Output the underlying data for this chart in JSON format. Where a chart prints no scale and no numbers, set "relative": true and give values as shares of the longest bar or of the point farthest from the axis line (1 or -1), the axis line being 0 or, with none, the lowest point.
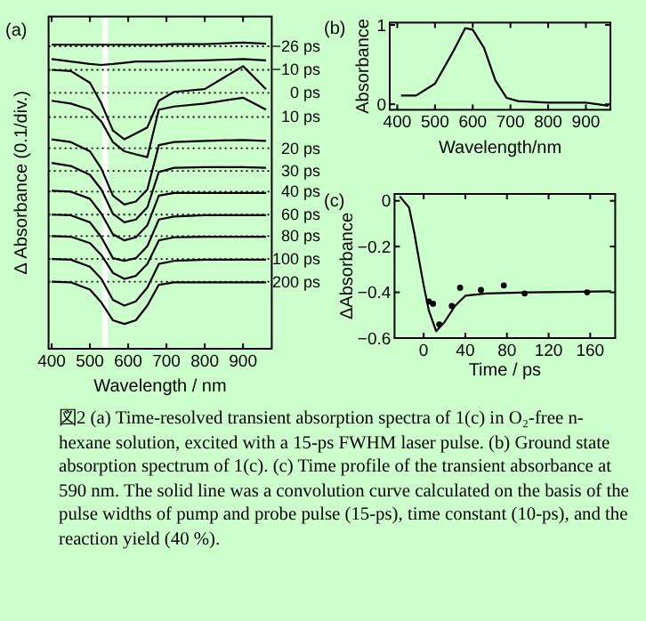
{
  "chart_data": [
    {
      "type": "line",
      "title": "(a)",
      "xlabel": "Wavelength / nm",
      "ylabel": "Δ Absorbance (0.1/div.)",
      "relative": true,
      "xlim": [
        392,
        975
      ],
      "xticks": [
        400,
        500,
        600,
        700,
        800,
        900
      ],
      "x": [
        400,
        450,
        500,
        530,
        560,
        590,
        620,
        650,
        680,
        720,
        800,
        900,
        960
      ],
      "series": [
        {
          "color": "#000000",
          "values": [
            0.993,
            0.993,
            0.993,
            0.993,
            0.993,
            0.993,
            0.993,
            0.993,
            0.993,
            0.995,
            0.995,
            1.0,
            0.996
          ]
        },
        {
          "color": "#000000",
          "values": [
            0.946,
            0.938,
            0.93,
            0.927,
            0.93,
            0.934,
            0.938,
            0.938,
            0.938,
            0.94,
            0.942,
            0.946,
            0.942
          ]
        },
        {
          "color": "#000000",
          "values": [
            0.911,
            0.907,
            0.869,
            0.801,
            0.713,
            0.684,
            0.703,
            0.723,
            0.81,
            0.839,
            0.848,
            0.923,
            0.848
          ]
        },
        {
          "color": "#000000",
          "values": [
            0.81,
            0.801,
            0.781,
            0.742,
            0.675,
            0.645,
            0.635,
            0.626,
            0.781,
            0.791,
            0.801,
            0.82,
            0.781
          ]
        },
        {
          "color": "#000000",
          "values": [
            0.684,
            0.675,
            0.645,
            0.588,
            0.5,
            0.471,
            0.481,
            0.52,
            0.665,
            0.675,
            0.679,
            0.682,
            0.679
          ]
        },
        {
          "color": "#000000",
          "values": [
            0.607,
            0.597,
            0.568,
            0.52,
            0.441,
            0.413,
            0.422,
            0.462,
            0.577,
            0.591,
            0.593,
            0.593,
            0.591
          ]
        },
        {
          "color": "#000000",
          "values": [
            0.516,
            0.513,
            0.49,
            0.441,
            0.374,
            0.354,
            0.364,
            0.403,
            0.5,
            0.509,
            0.509,
            0.509,
            0.509
          ]
        },
        {
          "color": "#000000",
          "values": [
            0.438,
            0.436,
            0.413,
            0.364,
            0.296,
            0.287,
            0.296,
            0.335,
            0.422,
            0.432,
            0.436,
            0.436,
            0.436
          ]
        },
        {
          "color": "#000000",
          "values": [
            0.368,
            0.366,
            0.345,
            0.306,
            0.248,
            0.228,
            0.238,
            0.277,
            0.354,
            0.364,
            0.366,
            0.366,
            0.366
          ]
        },
        {
          "color": "#000000",
          "values": [
            0.293,
            0.291,
            0.268,
            0.228,
            0.16,
            0.141,
            0.155,
            0.2,
            0.277,
            0.287,
            0.291,
            0.291,
            0.291
          ]
        },
        {
          "color": "#000000",
          "values": [
            0.219,
            0.217,
            0.193,
            0.151,
            0.093,
            0.081,
            0.093,
            0.141,
            0.209,
            0.217,
            0.217,
            0.217,
            0.217
          ]
        }
      ],
      "ref_lines": [
        {
          "axis": "y",
          "value": 0.988,
          "label": "−26 ps",
          "line_style": "dotted"
        },
        {
          "axis": "y",
          "value": 0.911,
          "label": "−10 ps",
          "line_style": "dotted"
        },
        {
          "axis": "y",
          "value": 0.836,
          "label": "0 ps",
          "line_style": "dotted"
        },
        {
          "axis": "y",
          "value": 0.757,
          "label": "10 ps",
          "line_style": "dotted"
        },
        {
          "axis": "y",
          "value": 0.655,
          "label": "20 ps",
          "line_style": "dotted"
        },
        {
          "axis": "y",
          "value": 0.581,
          "label": "30 ps",
          "line_style": "dotted"
        },
        {
          "axis": "y",
          "value": 0.513,
          "label": "40 ps",
          "line_style": "dotted"
        },
        {
          "axis": "y",
          "value": 0.438,
          "label": "60 ps",
          "line_style": "dotted"
        },
        {
          "axis": "y",
          "value": 0.368,
          "label": "80 ps",
          "line_style": "dotted"
        },
        {
          "axis": "y",
          "value": 0.293,
          "label": "100 ps",
          "line_style": "dotted"
        },
        {
          "axis": "y",
          "value": 0.219,
          "label": "200 ps",
          "line_style": "dotted"
        }
      ],
      "bands": [
        {
          "axis": "x",
          "from": 532,
          "to": 547,
          "color": "#ffffff"
        }
      ]
    },
    {
      "type": "line",
      "title": "(b)",
      "xlabel": "Wavelength/nm",
      "ylabel": "Absorbance",
      "xlim": [
        380,
        965
      ],
      "xticks": [
        400,
        500,
        600,
        700,
        800,
        900
      ],
      "ylim": [
        -0.07,
        1.03
      ],
      "yticks": [
        0,
        1
      ],
      "x": [
        410,
        450,
        500,
        550,
        580,
        600,
        630,
        660,
        690,
        720,
        800,
        900,
        960
      ],
      "series": [
        {
          "color": "#000000",
          "values": [
            0.11,
            0.11,
            0.26,
            0.68,
            0.96,
            0.94,
            0.71,
            0.3,
            0.08,
            0.04,
            0.02,
            0.02,
            -0.02
          ]
        }
      ]
    },
    {
      "type": "line",
      "title": "(c)",
      "xlabel": "Time / ps",
      "ylabel": "ΔAbsorbance",
      "xlim": [
        -28,
        184
      ],
      "xticks": [
        0,
        40,
        80,
        120,
        160
      ],
      "ylim": [
        -0.6,
        0.03
      ],
      "yticks": [
        0,
        -0.2,
        -0.4,
        -0.6
      ],
      "series": [
        {
          "color": "#000000",
          "x": [
            -23,
            -14,
            -9,
            -4,
            0,
            5,
            12,
            20,
            30,
            40,
            60,
            100,
            140,
            180
          ],
          "values": [
            0.02,
            -0.03,
            -0.14,
            -0.27,
            -0.37,
            -0.48,
            -0.57,
            -0.53,
            -0.46,
            -0.415,
            -0.405,
            -0.4,
            -0.398,
            -0.395
          ]
        },
        {
          "type": "scatter",
          "marker": "circle",
          "color": "#000000",
          "x": [
            5,
            9,
            15,
            27,
            35,
            55,
            77,
            97,
            157
          ],
          "values": [
            -0.44,
            -0.45,
            -0.54,
            -0.46,
            -0.38,
            -0.39,
            -0.37,
            -0.405,
            -0.4
          ]
        }
      ]
    },
    {
      "type": "other",
      "annotations": [
        "図2 (a) Time-resolved transient absorption spectra of 1(c) in O₂-free n-hexane solution, excited with a 15-ps FWHM laser pulse. (b) Ground state absorption spectrum of 1(c). (c) Time profile of the transient absorbance at 590 nm. The solid line was a convolution curve calculated on the basis of the pulse widths of pump and probe pulse (15-ps), time constant (10-ps), and the reaction yield (40 %)."
      ]
    }
  ]
}
